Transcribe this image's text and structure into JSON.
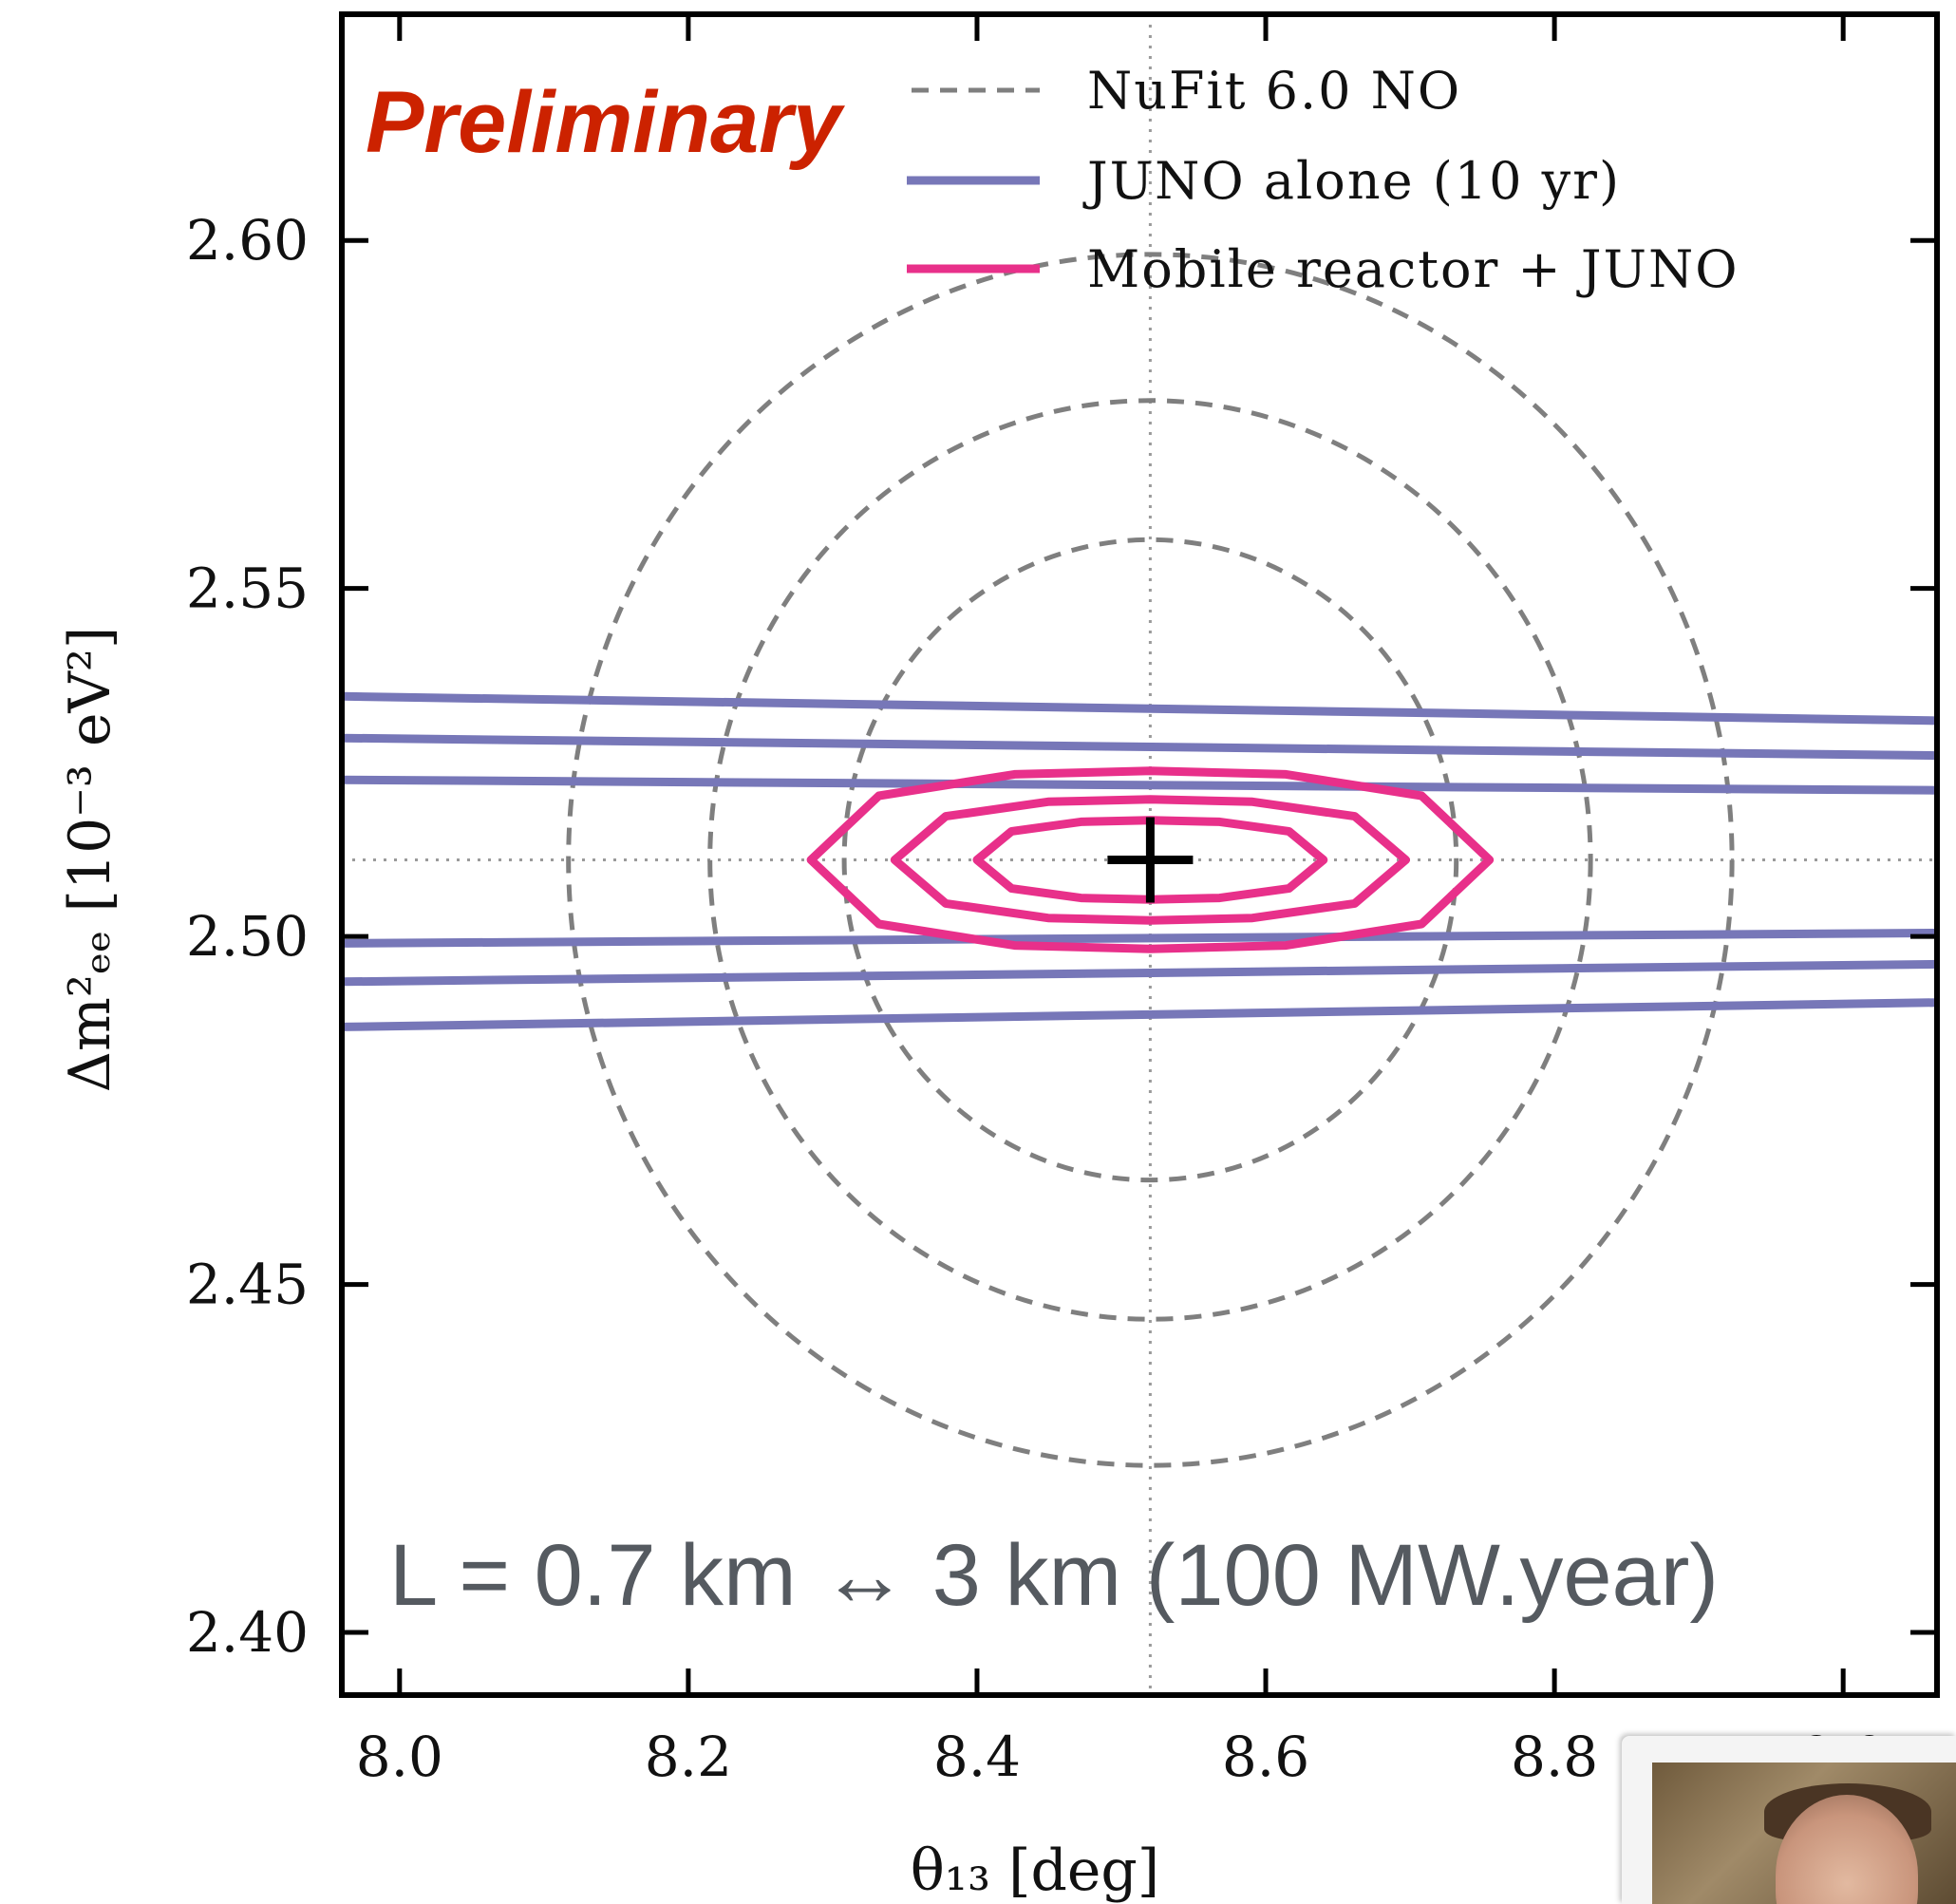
{
  "chart_data": {
    "type": "line",
    "xlabel": "θ₁₃ [deg]",
    "ylabel": "Δm²ₑₑ [10⁻³ eV²]",
    "xlim": [
      7.96,
      9.065
    ],
    "ylim": [
      2.391,
      2.6325
    ],
    "x_ticks": [
      8.0,
      8.2,
      8.4,
      8.6,
      8.8,
      9.0
    ],
    "x_tick_labels": [
      "8.0",
      "8.2",
      "8.4",
      "8.6",
      "8.8",
      "9.0"
    ],
    "y_ticks": [
      2.4,
      2.45,
      2.5,
      2.55,
      2.6
    ],
    "y_tick_labels": [
      "2.40",
      "2.45",
      "2.50",
      "2.55",
      "2.60"
    ],
    "grid": false,
    "legend_position": "top-right",
    "best_fit": {
      "x": 8.52,
      "y": 2.511
    },
    "reference_lines": {
      "x": 8.52,
      "y": 2.511
    },
    "series": [
      {
        "name": "NuFit 6.0 NO",
        "color": "#7f7f7f",
        "style": "dashed",
        "ellipses": [
          {
            "cx": 8.52,
            "cy": 2.511,
            "rx": 0.212,
            "ry": 0.046
          },
          {
            "cx": 8.52,
            "cy": 2.511,
            "rx": 0.305,
            "ry": 0.066
          },
          {
            "cx": 8.52,
            "cy": 2.511,
            "rx": 0.403,
            "ry": 0.087
          }
        ]
      },
      {
        "name": "JUNO alone (10 yr)",
        "color": "#7777b8",
        "style": "solid",
        "lines": [
          {
            "x": [
              7.96,
              9.065
            ],
            "y": [
              2.5345,
              2.531
            ]
          },
          {
            "x": [
              7.96,
              9.065
            ],
            "y": [
              2.5285,
              2.526
            ]
          },
          {
            "x": [
              7.96,
              9.065
            ],
            "y": [
              2.5225,
              2.521
            ]
          },
          {
            "x": [
              7.96,
              9.065
            ],
            "y": [
              2.499,
              2.5005
            ]
          },
          {
            "x": [
              7.96,
              9.065
            ],
            "y": [
              2.4935,
              2.496
            ]
          },
          {
            "x": [
              7.96,
              9.065
            ],
            "y": [
              2.487,
              2.4905
            ]
          }
        ]
      },
      {
        "name": "Mobile reactor + JUNO",
        "color": "#e8308a",
        "style": "solid",
        "ellipses": [
          {
            "cx": 8.52,
            "cy": 2.511,
            "rx": 0.12,
            "ry": 0.0057
          },
          {
            "cx": 8.52,
            "cy": 2.511,
            "rx": 0.177,
            "ry": 0.0087
          },
          {
            "cx": 8.52,
            "cy": 2.511,
            "rx": 0.235,
            "ry": 0.0128
          }
        ]
      }
    ],
    "annotations": {
      "preliminary": "Preliminary",
      "preliminary_color": "#cc2200",
      "baseline": "L = 0.7 km ↔ 3 km (100 MW.year)",
      "baseline_color": "#555a60"
    }
  }
}
